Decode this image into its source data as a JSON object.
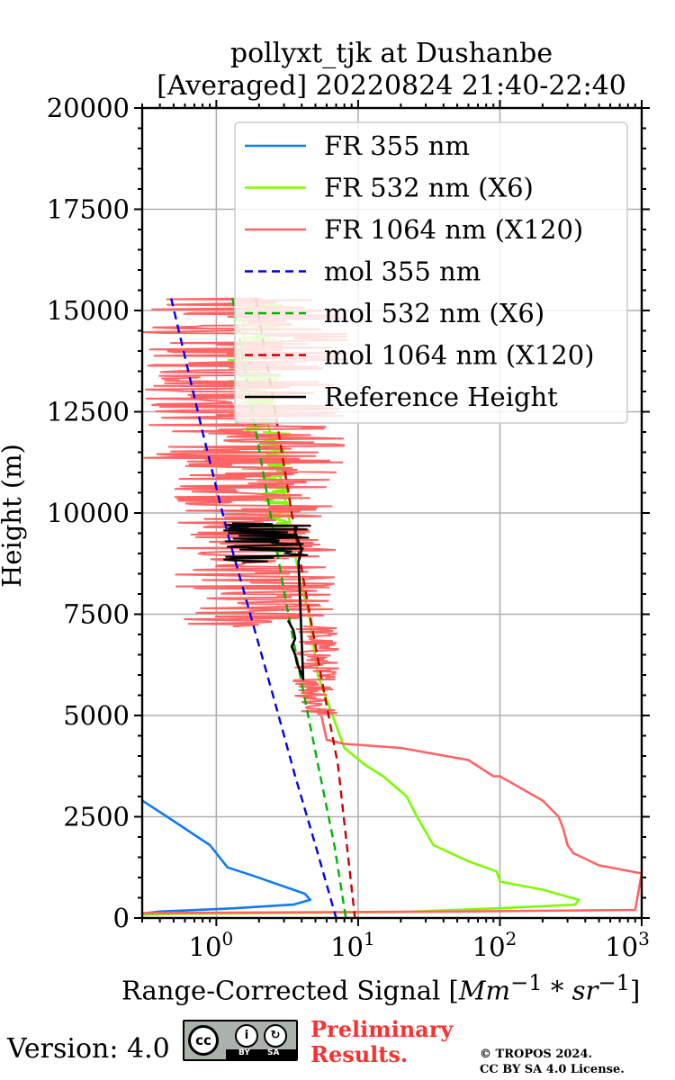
{
  "chart_data": {
    "type": "line",
    "title": [
      "pollyxt_tjk at Dushanbe",
      "[Averaged] 20220824 21:40-22:40"
    ],
    "xlabel": "Range-Corrected Signal [Mm^-1*sr^-1]",
    "ylabel": "Height (m)",
    "xscale": "log",
    "xlim": [
      0.3,
      1000
    ],
    "ylim": [
      0,
      20000
    ],
    "x_ticks": [
      1,
      10,
      100,
      1000
    ],
    "x_tick_labels": [
      [
        "10",
        "0"
      ],
      [
        "10",
        "1"
      ],
      [
        "10",
        "2"
      ],
      [
        "10",
        "3"
      ]
    ],
    "y_ticks": [
      0,
      2500,
      5000,
      7500,
      10000,
      12500,
      15000,
      17500,
      20000
    ],
    "grid": true,
    "legend_position": "top-right",
    "series": [
      {
        "name": "FR 355 nm",
        "color": "#0f7bf0",
        "style": "solid",
        "x": [
          0.3,
          0.45,
          0.9,
          1.2,
          1.8,
          4.2,
          4.6,
          3.5,
          1.2,
          0.4,
          0.3
        ],
        "y": [
          2900,
          2500,
          1800,
          1250,
          1050,
          600,
          450,
          330,
          230,
          160,
          110
        ]
      },
      {
        "name": "FR 532 nm (X6)",
        "color": "#7bfc00",
        "style": "solid",
        "x": [
          1.5,
          1.6,
          2.0,
          2.6,
          3.2,
          3.8,
          4.5,
          5.2,
          8.0,
          11,
          15,
          22,
          26,
          34,
          60,
          95,
          100,
          200,
          360,
          340,
          100,
          20,
          0.5,
          0.3
        ],
        "y": [
          15200,
          14000,
          13000,
          11500,
          10000,
          8500,
          7500,
          6000,
          4200,
          3800,
          3500,
          3000,
          2500,
          1800,
          1400,
          1150,
          900,
          700,
          450,
          330,
          240,
          150,
          100,
          80
        ],
        "noise_rows": [
          {
            "y0": 12000,
            "y1": 15200,
            "lo": 1.2,
            "hi": 3.0
          },
          {
            "y0": 9000,
            "y1": 12000,
            "lo": 2.0,
            "hi": 3.4
          }
        ]
      },
      {
        "name": "FR 1064 nm (X120)",
        "color": "#ff6464",
        "style": "solid",
        "x": [
          5.5,
          6,
          8,
          20,
          60,
          90,
          100,
          200,
          260,
          280,
          300,
          330,
          500,
          1000,
          900,
          50,
          0.3
        ],
        "y": [
          5000,
          4400,
          4300,
          4200,
          3900,
          3500,
          3500,
          2900,
          2500,
          2200,
          1800,
          1600,
          1300,
          1100,
          200,
          160,
          120
        ],
        "noise_rows": [
          {
            "y0": 11000,
            "y1": 15300,
            "lo": 0.3,
            "hi": 9.0
          },
          {
            "y0": 7200,
            "y1": 11000,
            "lo": 0.5,
            "hi": 7.0
          },
          {
            "y0": 5000,
            "y1": 7200,
            "lo": 3.5,
            "hi": 7.5
          }
        ]
      },
      {
        "name": "mol 355 nm",
        "color": "#0000ee",
        "style": "dashed",
        "x": [
          0.48,
          0.8,
          1.2,
          1.8,
          2.6,
          3.6,
          5.0,
          7.0
        ],
        "y": [
          15300,
          12000,
          9500,
          7300,
          5300,
          3500,
          1800,
          0
        ]
      },
      {
        "name": "mol 532 nm (X6)",
        "color": "#00b400",
        "style": "dashed",
        "x": [
          1.3,
          1.8,
          2.4,
          3.1,
          4.0,
          5.2,
          6.8,
          8.2
        ],
        "y": [
          15300,
          12500,
          10000,
          7800,
          5800,
          3800,
          1800,
          0
        ]
      },
      {
        "name": "mol 1064 nm (X120)",
        "color": "#cc0000",
        "style": "dashed",
        "x": [
          1.9,
          2.6,
          3.4,
          4.4,
          5.6,
          7.2,
          9.5
        ],
        "y": [
          15300,
          12500,
          10000,
          7800,
          5800,
          3800,
          0
        ]
      },
      {
        "name": "Reference Height",
        "color": "#000000",
        "style": "solid",
        "x": [
          3.2,
          3.5,
          3.6,
          3.4,
          3.6,
          3.7,
          3.9,
          4.1,
          3.8,
          4.0,
          3.6,
          3.7
        ],
        "y": [
          7350,
          7100,
          6900,
          6700,
          6500,
          6300,
          6100,
          5900,
          8800,
          9100,
          9500,
          9700
        ],
        "noise_rows": [
          {
            "y0": 8800,
            "y1": 9750,
            "lo": 1.1,
            "hi": 5.3
          }
        ]
      }
    ]
  },
  "footer": {
    "version": "Version: 4.0",
    "license_badge": "cc-by-sa-badge",
    "cc_text": "cc",
    "by_text": "BY",
    "sa_text": "SA",
    "preliminary": [
      "Preliminary",
      "Results."
    ],
    "copyright": [
      "© TROPOS 2024.",
      "CC BY SA 4.0 License."
    ]
  }
}
